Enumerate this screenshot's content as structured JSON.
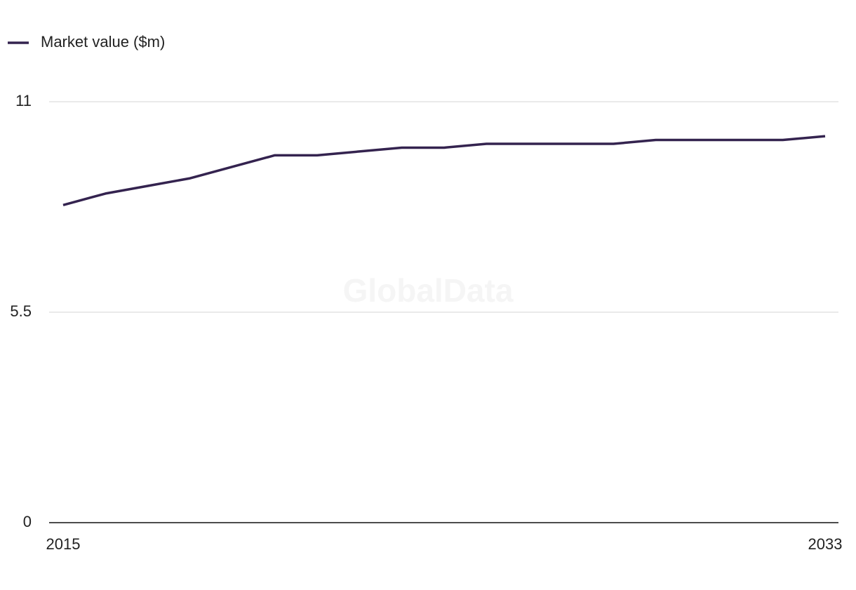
{
  "chart_data": {
    "type": "line",
    "watermark": "GlobalData",
    "x": [
      2015,
      2016,
      2017,
      2018,
      2019,
      2020,
      2021,
      2022,
      2023,
      2024,
      2025,
      2026,
      2027,
      2028,
      2029,
      2030,
      2031,
      2032,
      2033
    ],
    "series": [
      {
        "name": "Market value ($m)",
        "color": "#34234f",
        "values": [
          8.3,
          8.6,
          8.8,
          9.0,
          9.3,
          9.6,
          9.6,
          9.7,
          9.8,
          9.8,
          9.9,
          9.9,
          9.9,
          9.9,
          10.0,
          10.0,
          10.0,
          10.0,
          10.1
        ]
      }
    ],
    "xlim": [
      2015,
      2033
    ],
    "xticks": [
      2015,
      2033
    ],
    "ylim": [
      0,
      11
    ],
    "yticks": [
      0,
      5.5,
      11
    ],
    "grid": true,
    "legend": "top-left"
  }
}
